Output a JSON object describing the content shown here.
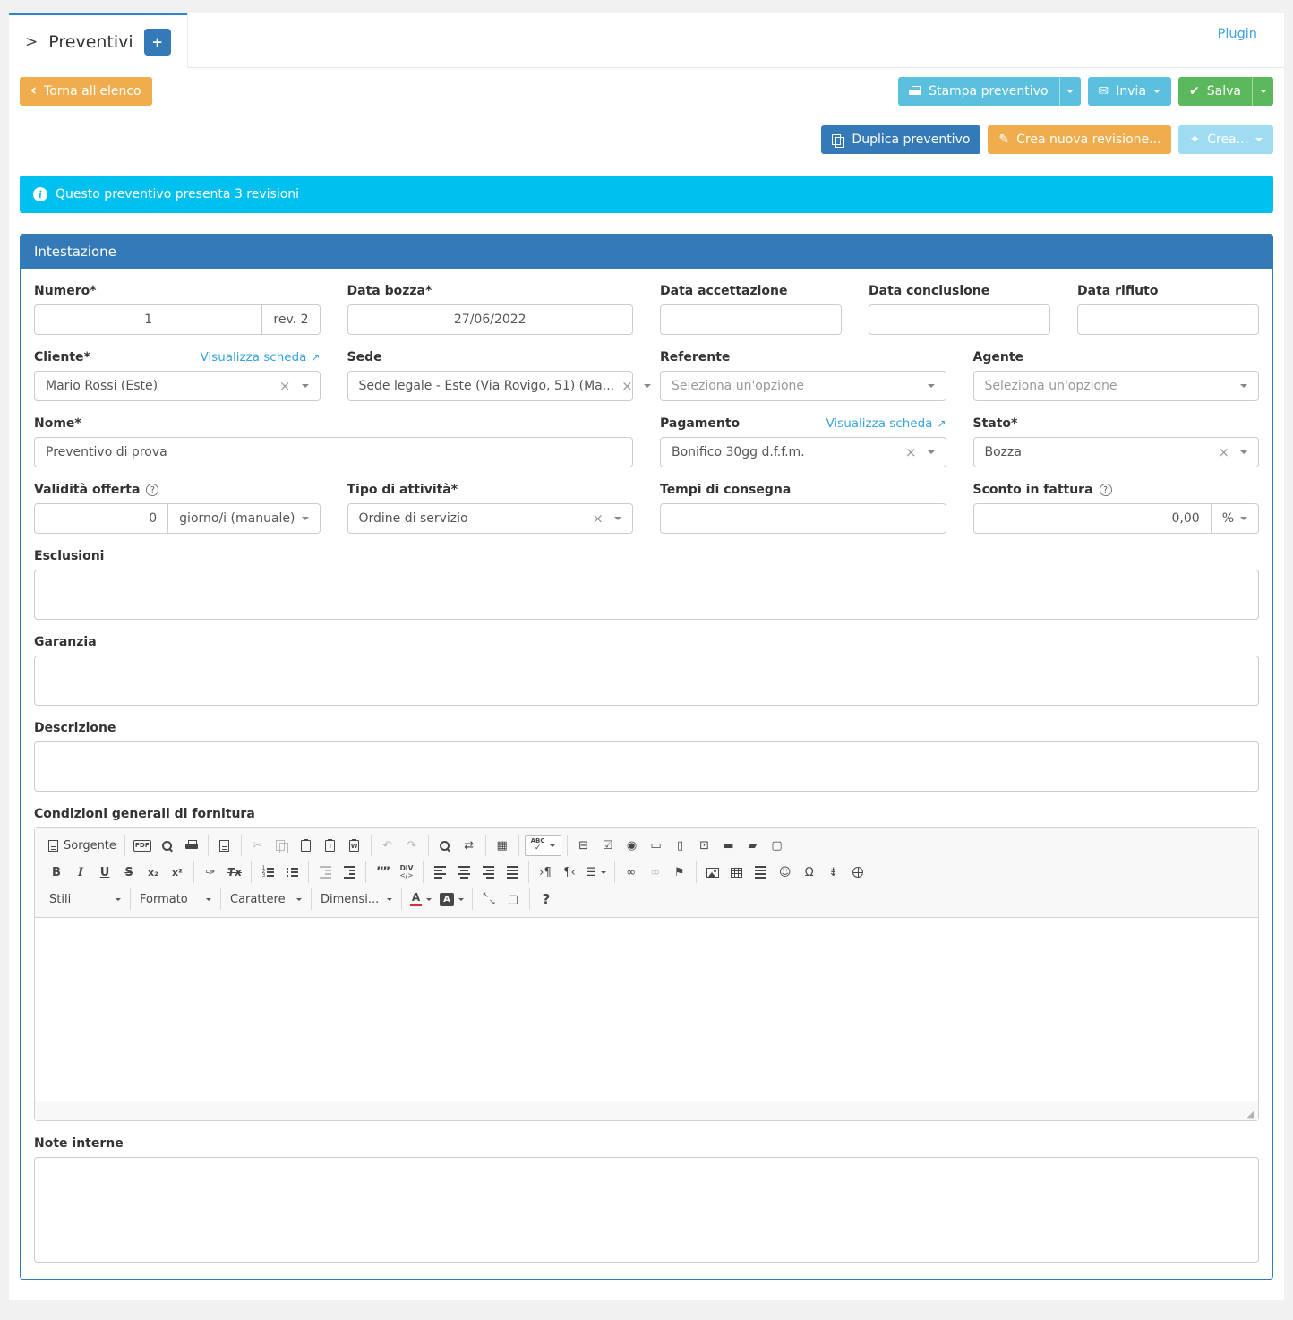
{
  "colors": {
    "primary": "#337ab7",
    "info": "#00c0ef",
    "success": "#5cb85c",
    "warning": "#f0ad4e",
    "lightblue": "#5bc0de",
    "palelightblue": "#9edcf2",
    "link": "#3aa4dc",
    "tabborder": "#2f87c9"
  },
  "icons": {
    "back_chevron": "‹",
    "envelope": "✉",
    "check": "✔",
    "pencil": "✎",
    "wand": "✦",
    "plus": "+",
    "info": "i",
    "help": "?",
    "external_link": "↗",
    "clear": "×",
    "resize": "◢",
    "tab_arrow": ">"
  },
  "header": {
    "tab_title": "Preventivi",
    "plugin_link": "Plugin"
  },
  "actions": {
    "back": "Torna all'elenco",
    "print": "Stampa preventivo",
    "send": "Invia",
    "save": "Salva",
    "duplicate": "Duplica preventivo",
    "new_revision": "Crea nuova revisione...",
    "create": "Crea..."
  },
  "alert": {
    "text": "Questo preventivo presenta 3 revisioni"
  },
  "panel": {
    "title": "Intestazione"
  },
  "fields": {
    "numero": {
      "label": "Numero*",
      "value": "1",
      "addon": "rev. 2"
    },
    "data_bozza": {
      "label": "Data bozza*",
      "value": "27/06/2022"
    },
    "data_accettazione": {
      "label": "Data accettazione",
      "value": ""
    },
    "data_conclusione": {
      "label": "Data conclusione",
      "value": ""
    },
    "data_rifiuto": {
      "label": "Data rifiuto",
      "value": ""
    },
    "cliente": {
      "label": "Cliente*",
      "link": "Visualizza scheda",
      "value": "Mario Rossi (Este)"
    },
    "sede": {
      "label": "Sede",
      "value": "Sede legale - Este (Via Rovigo, 51) (Ma..."
    },
    "referente": {
      "label": "Referente",
      "placeholder": "Seleziona un'opzione"
    },
    "agente": {
      "label": "Agente",
      "placeholder": "Seleziona un'opzione"
    },
    "nome": {
      "label": "Nome*",
      "value": "Preventivo di prova"
    },
    "pagamento": {
      "label": "Pagamento",
      "link": "Visualizza scheda",
      "value": "Bonifico 30gg d.f.f.m."
    },
    "stato": {
      "label": "Stato*",
      "value": "Bozza"
    },
    "validita": {
      "label": "Validità offerta",
      "value": "0",
      "addon": "giorno/i (manuale)"
    },
    "tipo_attivita": {
      "label": "Tipo di attività*",
      "value": "Ordine di servizio"
    },
    "tempi_consegna": {
      "label": "Tempi di consegna",
      "value": ""
    },
    "sconto": {
      "label": "Sconto in fattura",
      "value": "0,00",
      "addon": "%"
    },
    "esclusioni": {
      "label": "Esclusioni"
    },
    "garanzia": {
      "label": "Garanzia"
    },
    "descrizione": {
      "label": "Descrizione"
    },
    "condizioni": {
      "label": "Condizioni generali di fornitura"
    },
    "note_interne": {
      "label": "Note interne"
    }
  },
  "editor": {
    "toolbar": [
      [
        [
          {
            "n": "source-button",
            "c": "doc",
            "label": "Sorgente"
          }
        ],
        [
          {
            "n": "export-pdf-button",
            "g": "PDF",
            "cls": "pdftxt"
          },
          {
            "n": "preview-button",
            "c": "search"
          },
          {
            "n": "print-button",
            "c": "print"
          }
        ],
        [
          {
            "n": "templates-button",
            "c": "doc"
          }
        ],
        [
          {
            "n": "cut-button",
            "g": "✂",
            "dis": 1
          },
          {
            "n": "copy-button",
            "c": "copy",
            "dis": 1
          },
          {
            "n": "paste-button",
            "c": "clip"
          },
          {
            "n": "paste-text-button",
            "c": "clip",
            "sub": "T"
          },
          {
            "n": "paste-word-button",
            "c": "clip",
            "sub": "W"
          }
        ],
        [
          {
            "n": "undo-button",
            "g": "↶",
            "dis": 1
          },
          {
            "n": "redo-button",
            "g": "↷",
            "dis": 1
          }
        ],
        [
          {
            "n": "find-button",
            "c": "search"
          },
          {
            "n": "replace-button",
            "g": "⇄"
          }
        ],
        [
          {
            "n": "select-all-button",
            "g": "▦"
          }
        ],
        [
          {
            "n": "spellcheck-button",
            "g": "ABC",
            "cls": "abc",
            "boxed": 1,
            "caret": 1
          }
        ],
        [
          {
            "n": "form-button",
            "g": "⊟"
          },
          {
            "n": "checkbox-button",
            "g": "☑"
          },
          {
            "n": "radio-button",
            "g": "◉"
          },
          {
            "n": "text-field-button",
            "g": "▭"
          },
          {
            "n": "textarea-button",
            "g": "▯"
          },
          {
            "n": "select-field-button",
            "g": "⊡"
          },
          {
            "n": "button-button",
            "g": "▬"
          },
          {
            "n": "image-button-button",
            "g": "▰"
          },
          {
            "n": "hidden-field-button",
            "g": "▢"
          }
        ]
      ],
      [
        [
          {
            "n": "bold-button",
            "g": "B",
            "cls": "b"
          },
          {
            "n": "italic-button",
            "g": "I",
            "cls": "i"
          },
          {
            "n": "underline-button",
            "g": "U",
            "cls": "u"
          },
          {
            "n": "strikethrough-button",
            "g": "S",
            "cls": "s"
          },
          {
            "n": "subscript-button",
            "g": "x₂",
            "cls": "xs"
          },
          {
            "n": "superscript-button",
            "g": "x²",
            "cls": "xs"
          }
        ],
        [
          {
            "n": "copy-formatting-button",
            "g": "✑"
          },
          {
            "n": "remove-format-button",
            "g": "Tx",
            "cls": "tx"
          }
        ],
        [
          {
            "n": "numbered-list-button",
            "bars": "ol"
          },
          {
            "n": "bulleted-list-button",
            "bars": "ul"
          }
        ],
        [
          {
            "n": "decrease-indent-button",
            "bars": "outdent",
            "dis": 1
          },
          {
            "n": "increase-indent-button",
            "bars": "indent"
          }
        ],
        [
          {
            "n": "blockquote-button",
            "g": "””",
            "cls": "quo"
          },
          {
            "n": "div-container-button",
            "g": "DIV",
            "cls": "divtxt"
          }
        ],
        [
          {
            "n": "align-left-button",
            "bars": "left"
          },
          {
            "n": "align-center-button",
            "bars": "center"
          },
          {
            "n": "align-right-button",
            "bars": "right"
          },
          {
            "n": "align-justify-button",
            "bars": "justify"
          }
        ],
        [
          {
            "n": "ltr-button",
            "g": "›¶"
          },
          {
            "n": "rtl-button",
            "g": "¶‹"
          },
          {
            "n": "language-button",
            "g": "☰",
            "caret": 1
          }
        ],
        [
          {
            "n": "link-button",
            "g": "∞"
          },
          {
            "n": "unlink-button",
            "g": "∞",
            "dis": 1
          },
          {
            "n": "anchor-button",
            "g": "⚑"
          }
        ],
        [
          {
            "n": "image-button",
            "c": "img"
          },
          {
            "n": "table-button",
            "c": "table"
          },
          {
            "n": "horizontal-line-button",
            "bars": "justify"
          },
          {
            "n": "smiley-button",
            "g": "☺"
          },
          {
            "n": "special-character-button",
            "g": "Ω"
          },
          {
            "n": "page-break-button",
            "g": "⇟"
          },
          {
            "n": "iframe-button",
            "c": "globe"
          }
        ]
      ],
      [
        [
          {
            "sel": 1,
            "n": "styles-select",
            "text": "Stili"
          }
        ],
        [
          {
            "sel": 1,
            "n": "format-select",
            "text": "Formato"
          }
        ],
        [
          {
            "sel": 1,
            "n": "font-select",
            "text": "Carattere"
          }
        ],
        [
          {
            "sel": 1,
            "n": "size-select",
            "text": "Dimensi..."
          }
        ],
        [
          {
            "n": "text-color-button",
            "special": "fcolor",
            "caret": 1
          },
          {
            "n": "background-color-button",
            "special": "bcolor",
            "caret": 1
          }
        ],
        [
          {
            "n": "maximize-button",
            "c": "max"
          },
          {
            "n": "show-blocks-button",
            "g": "▢"
          }
        ],
        [
          {
            "n": "about-button",
            "g": "?",
            "cls": "q"
          }
        ]
      ]
    ]
  }
}
